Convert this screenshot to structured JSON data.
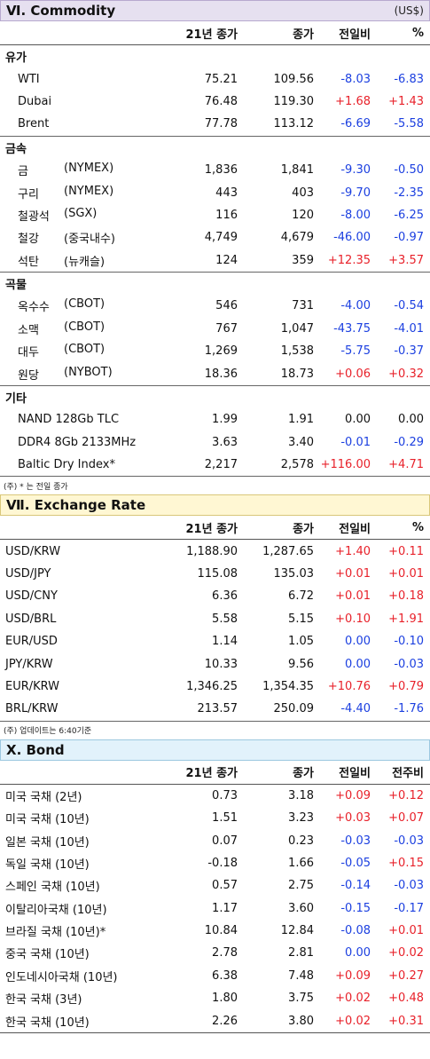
{
  "commodity": {
    "title": "Ⅵ. Commodity",
    "unit": "(US$)",
    "headers": [
      "21년 종가",
      "종가",
      "전일비",
      "%"
    ],
    "groups": [
      {
        "name": "유가",
        "rows": [
          {
            "a": "WTI",
            "b": "",
            "v1": "75.21",
            "v2": "109.56",
            "v3": "-8.03",
            "v4": "-6.83",
            "c3": "blue",
            "c4": "blue"
          },
          {
            "a": "Dubai",
            "b": "",
            "v1": "76.48",
            "v2": "119.30",
            "v3": "+1.68",
            "v4": "+1.43",
            "c3": "red",
            "c4": "red"
          },
          {
            "a": "Brent",
            "b": "",
            "v1": "77.78",
            "v2": "113.12",
            "v3": "-6.69",
            "v4": "-5.58",
            "c3": "blue",
            "c4": "blue"
          }
        ]
      },
      {
        "name": "금속",
        "rows": [
          {
            "a": "금",
            "b": "(NYMEX)",
            "v1": "1,836",
            "v2": "1,841",
            "v3": "-9.30",
            "v4": "-0.50",
            "c3": "blue",
            "c4": "blue"
          },
          {
            "a": "구리",
            "b": "(NYMEX)",
            "v1": "443",
            "v2": "403",
            "v3": "-9.70",
            "v4": "-2.35",
            "c3": "blue",
            "c4": "blue"
          },
          {
            "a": "철광석",
            "b": "(SGX)",
            "v1": "116",
            "v2": "120",
            "v3": "-8.00",
            "v4": "-6.25",
            "c3": "blue",
            "c4": "blue"
          },
          {
            "a": "철강",
            "b": "(중국내수)",
            "v1": "4,749",
            "v2": "4,679",
            "v3": "-46.00",
            "v4": "-0.97",
            "c3": "blue",
            "c4": "blue"
          },
          {
            "a": "석탄",
            "b": "(뉴캐슬)",
            "v1": "124",
            "v2": "359",
            "v3": "+12.35",
            "v4": "+3.57",
            "c3": "red",
            "c4": "red"
          }
        ]
      },
      {
        "name": "곡물",
        "rows": [
          {
            "a": "옥수수",
            "b": "(CBOT)",
            "v1": "546",
            "v2": "731",
            "v3": "-4.00",
            "v4": "-0.54",
            "c3": "blue",
            "c4": "blue"
          },
          {
            "a": "소맥",
            "b": "(CBOT)",
            "v1": "767",
            "v2": "1,047",
            "v3": "-43.75",
            "v4": "-4.01",
            "c3": "blue",
            "c4": "blue"
          },
          {
            "a": "대두",
            "b": "(CBOT)",
            "v1": "1,269",
            "v2": "1,538",
            "v3": "-5.75",
            "v4": "-0.37",
            "c3": "blue",
            "c4": "blue"
          },
          {
            "a": "원당",
            "b": "(NYBOT)",
            "v1": "18.36",
            "v2": "18.73",
            "v3": "+0.06",
            "v4": "+0.32",
            "c3": "red",
            "c4": "red"
          }
        ]
      },
      {
        "name": "기타",
        "rows": [
          {
            "a": "NAND 128Gb TLC",
            "b": "",
            "v1": "1.99",
            "v2": "1.91",
            "v3": "0.00",
            "v4": "0.00",
            "c3": "",
            "c4": ""
          },
          {
            "a": "DDR4 8Gb 2133MHz",
            "b": "",
            "v1": "3.63",
            "v2": "3.40",
            "v3": "-0.01",
            "v4": "-0.29",
            "c3": "blue",
            "c4": "blue"
          },
          {
            "a": "Baltic Dry Index*",
            "b": "",
            "v1": "2,217",
            "v2": "2,578",
            "v3": "+116.00",
            "v4": "+4.71",
            "c3": "red",
            "c4": "red"
          }
        ]
      }
    ],
    "note": "(주) * 는 전일 종가"
  },
  "exchange": {
    "title": "Ⅶ. Exchange Rate",
    "headers": [
      "21년 종가",
      "종가",
      "전일비",
      "%"
    ],
    "rows": [
      {
        "a": "USD/KRW",
        "v1": "1,188.90",
        "v2": "1,287.65",
        "v3": "+1.40",
        "v4": "+0.11",
        "c3": "red",
        "c4": "red"
      },
      {
        "a": "USD/JPY",
        "v1": "115.08",
        "v2": "135.03",
        "v3": "+0.01",
        "v4": "+0.01",
        "c3": "red",
        "c4": "red"
      },
      {
        "a": "USD/CNY",
        "v1": "6.36",
        "v2": "6.72",
        "v3": "+0.01",
        "v4": "+0.18",
        "c3": "red",
        "c4": "red"
      },
      {
        "a": "USD/BRL",
        "v1": "5.58",
        "v2": "5.15",
        "v3": "+0.10",
        "v4": "+1.91",
        "c3": "red",
        "c4": "red"
      },
      {
        "a": "EUR/USD",
        "v1": "1.14",
        "v2": "1.05",
        "v3": "0.00",
        "v4": "-0.10",
        "c3": "blue",
        "c4": "blue"
      },
      {
        "a": "JPY/KRW",
        "v1": "10.33",
        "v2": "9.56",
        "v3": "0.00",
        "v4": "-0.03",
        "c3": "blue",
        "c4": "blue"
      },
      {
        "a": "EUR/KRW",
        "v1": "1,346.25",
        "v2": "1,354.35",
        "v3": "+10.76",
        "v4": "+0.79",
        "c3": "red",
        "c4": "red"
      },
      {
        "a": "BRL/KRW",
        "v1": "213.57",
        "v2": "250.09",
        "v3": "-4.40",
        "v4": "-1.76",
        "c3": "blue",
        "c4": "blue"
      }
    ],
    "note": "(주) 업데이트는 6:40기준"
  },
  "bond": {
    "title": "X. Bond",
    "headers": [
      "21년 종가",
      "종가",
      "전일비",
      "전주비"
    ],
    "rows": [
      {
        "a": "미국 국채 (2년)",
        "v1": "0.73",
        "v2": "3.18",
        "v3": "+0.09",
        "v4": "+0.12",
        "c3": "red",
        "c4": "red"
      },
      {
        "a": "미국 국채 (10년)",
        "v1": "1.51",
        "v2": "3.23",
        "v3": "+0.03",
        "v4": "+0.07",
        "c3": "red",
        "c4": "red"
      },
      {
        "a": "일본 국채 (10년)",
        "v1": "0.07",
        "v2": "0.23",
        "v3": "-0.03",
        "v4": "-0.03",
        "c3": "blue",
        "c4": "blue"
      },
      {
        "a": "독일 국채 (10년)",
        "v1": "-0.18",
        "v2": "1.66",
        "v3": "-0.05",
        "v4": "+0.15",
        "c3": "blue",
        "c4": "red"
      },
      {
        "a": "스페인 국채 (10년)",
        "v1": "0.57",
        "v2": "2.75",
        "v3": "-0.14",
        "v4": "-0.03",
        "c3": "blue",
        "c4": "blue"
      },
      {
        "a": "이탈리아국채 (10년)",
        "v1": "1.17",
        "v2": "3.60",
        "v3": "-0.15",
        "v4": "-0.17",
        "c3": "blue",
        "c4": "blue"
      },
      {
        "a": "브라질 국채 (10년)*",
        "v1": "10.84",
        "v2": "12.84",
        "v3": "-0.08",
        "v4": "+0.01",
        "c3": "blue",
        "c4": "red"
      },
      {
        "a": "중국 국채 (10년)",
        "v1": "2.78",
        "v2": "2.81",
        "v3": "0.00",
        "v4": "+0.02",
        "c3": "blue",
        "c4": "red"
      },
      {
        "a": "인도네시아국채 (10년)",
        "v1": "6.38",
        "v2": "7.48",
        "v3": "+0.09",
        "v4": "+0.27",
        "c3": "red",
        "c4": "red"
      },
      {
        "a": "한국 국채 (3년)",
        "v1": "1.80",
        "v2": "3.75",
        "v3": "+0.02",
        "v4": "+0.48",
        "c3": "red",
        "c4": "red"
      },
      {
        "a": "한국 국채 (10년)",
        "v1": "2.26",
        "v2": "3.80",
        "v3": "+0.02",
        "v4": "+0.31",
        "c3": "red",
        "c4": "red"
      }
    ]
  }
}
